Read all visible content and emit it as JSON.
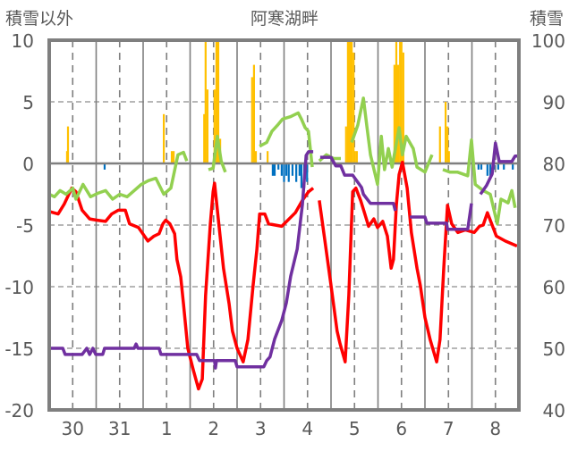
{
  "chart_data": {
    "type": "line",
    "title": "阿寒湖畔",
    "ylabel_left": "積雪以外",
    "ylabel_right": "積雪",
    "x_unit": "days since first label day 00:00",
    "xlim": [
      0,
      10
    ],
    "ylim_left": [
      -20,
      10
    ],
    "ylim_right": [
      40,
      100
    ],
    "yticks_left": [
      "10",
      "5",
      "0",
      "-5",
      "-10",
      "-15",
      "-20"
    ],
    "yticks_right": [
      "100",
      "90",
      "80",
      "70",
      "60",
      "50",
      "40"
    ],
    "xtick_labels": [
      "30",
      "31",
      "1",
      "2",
      "3",
      "4",
      "5",
      "6",
      "7",
      "8"
    ],
    "grid": true,
    "legend": "none",
    "line_series": [
      {
        "id": "red",
        "axis": "left",
        "color": "#ff0000",
        "points": [
          [
            0,
            -3.9
          ],
          [
            0.19,
            -4.1
          ],
          [
            0.32,
            -3.3
          ],
          [
            0.48,
            -2.0
          ],
          [
            0.57,
            -2.3
          ],
          [
            0.7,
            -3.8
          ],
          [
            0.86,
            -4.5
          ],
          [
            1.01,
            -4.6
          ],
          [
            1.2,
            -4.7
          ],
          [
            1.33,
            -4.1
          ],
          [
            1.47,
            -3.8
          ],
          [
            1.62,
            -3.8
          ],
          [
            1.71,
            -4.9
          ],
          [
            1.9,
            -5.2
          ],
          [
            2.1,
            -6.3
          ],
          [
            2.23,
            -5.9
          ],
          [
            2.34,
            -5.7
          ],
          [
            2.42,
            -4.9
          ],
          [
            2.48,
            -4.6
          ],
          [
            2.57,
            -4.9
          ],
          [
            2.67,
            -5.7
          ],
          [
            2.72,
            -7.8
          ],
          [
            2.8,
            -9.2
          ],
          [
            2.86,
            -11.4
          ],
          [
            2.95,
            -15.0
          ],
          [
            3.07,
            -16.8
          ],
          [
            3.18,
            -18.3
          ],
          [
            3.26,
            -17.5
          ],
          [
            3.33,
            -10.7
          ],
          [
            3.43,
            -4.9
          ],
          [
            3.49,
            -2.3
          ],
          [
            3.52,
            -1.6
          ],
          [
            3.6,
            -4.5
          ],
          [
            3.71,
            -8.5
          ],
          [
            3.83,
            -11.4
          ],
          [
            3.9,
            -13.6
          ],
          [
            4.0,
            -15.0
          ],
          [
            4.13,
            -16.1
          ],
          [
            4.23,
            -14.3
          ],
          [
            4.34,
            -9.9
          ],
          [
            4.42,
            -7.0
          ],
          [
            4.48,
            -4.1
          ],
          [
            4.59,
            -4.1
          ],
          [
            4.67,
            -4.9
          ],
          [
            4.95,
            -5.1
          ],
          [
            5.24,
            -4.0
          ],
          [
            5.39,
            -3.0
          ],
          [
            5.52,
            -2.3
          ],
          [
            5.62,
            -2.0
          ],
          null,
          [
            5.75,
            -3.0
          ],
          [
            5.87,
            -6.3
          ],
          [
            6.0,
            -9.9
          ],
          [
            6.13,
            -13.6
          ],
          [
            6.19,
            -14.6
          ],
          [
            6.3,
            -16.1
          ],
          [
            6.38,
            -10.7
          ],
          [
            6.46,
            -2.3
          ],
          [
            6.53,
            -2.0
          ],
          [
            6.63,
            -3.0
          ],
          [
            6.72,
            -4.1
          ],
          [
            6.8,
            -5.1
          ],
          [
            6.91,
            -4.5
          ],
          [
            6.99,
            -5.2
          ],
          [
            7.1,
            -4.7
          ],
          [
            7.2,
            -5.9
          ],
          [
            7.28,
            -8.5
          ],
          [
            7.33,
            -7.8
          ],
          [
            7.39,
            -3.4
          ],
          [
            7.45,
            -0.9
          ],
          [
            7.52,
            0.1
          ],
          [
            7.62,
            -2.0
          ],
          [
            7.71,
            -5.6
          ],
          [
            7.83,
            -8.5
          ],
          [
            7.9,
            -9.9
          ],
          [
            8.0,
            -12.5
          ],
          [
            8.11,
            -14.3
          ],
          [
            8.25,
            -16.1
          ],
          [
            8.32,
            -14.3
          ],
          [
            8.4,
            -8.5
          ],
          [
            8.48,
            -3.4
          ],
          [
            8.57,
            -4.9
          ],
          [
            8.7,
            -5.6
          ],
          [
            8.86,
            -5.4
          ],
          [
            9.05,
            -5.6
          ],
          [
            9.16,
            -5.1
          ],
          [
            9.24,
            -5.0
          ],
          [
            9.33,
            -4.0
          ],
          [
            9.43,
            -5.0
          ],
          [
            9.52,
            -5.9
          ],
          [
            9.71,
            -6.3
          ],
          [
            9.96,
            -6.7
          ]
        ]
      },
      {
        "id": "green",
        "axis": "left",
        "color": "#92d050",
        "points": [
          [
            0,
            -2.5
          ],
          [
            0.11,
            -2.7
          ],
          [
            0.23,
            -2.2
          ],
          [
            0.36,
            -2.5
          ],
          [
            0.5,
            -2.0
          ],
          [
            0.57,
            -2.9
          ],
          [
            0.72,
            -1.7
          ],
          [
            0.88,
            -2.7
          ],
          [
            1.05,
            -2.4
          ],
          [
            1.2,
            -2.2
          ],
          [
            1.35,
            -2.9
          ],
          [
            1.5,
            -2.5
          ],
          [
            1.66,
            -2.7
          ],
          [
            1.81,
            -2.2
          ],
          [
            1.96,
            -1.7
          ],
          [
            2.11,
            -1.4
          ],
          [
            2.27,
            -1.2
          ],
          [
            2.44,
            -2.5
          ],
          [
            2.59,
            -2.0
          ],
          [
            2.74,
            0.7
          ],
          [
            2.86,
            0.9
          ],
          [
            2.93,
            0.2
          ],
          null,
          [
            3.39,
            -0.5
          ],
          [
            3.49,
            -0.4
          ],
          [
            3.58,
            2.2
          ],
          [
            3.66,
            0.2
          ],
          [
            3.75,
            -0.7
          ],
          null,
          [
            4.48,
            1.4
          ],
          [
            4.63,
            1.7
          ],
          [
            4.74,
            2.6
          ],
          [
            4.86,
            3.1
          ],
          [
            4.97,
            3.6
          ],
          [
            5.14,
            3.8
          ],
          [
            5.3,
            4.1
          ],
          [
            5.37,
            3.6
          ],
          [
            5.45,
            2.9
          ],
          [
            5.52,
            2.6
          ],
          [
            5.6,
            -0.3
          ],
          null,
          [
            5.75,
            0.2
          ],
          [
            5.9,
            0.7
          ],
          [
            6.06,
            0.4
          ],
          [
            6.21,
            0.4
          ],
          null,
          [
            6.44,
            1.7
          ],
          [
            6.57,
            3.1
          ],
          [
            6.69,
            5.3
          ],
          [
            6.76,
            3.1
          ],
          [
            6.84,
            0.7
          ],
          [
            6.99,
            -1.7
          ],
          [
            7.07,
            2.2
          ],
          [
            7.14,
            -0.5
          ],
          [
            7.22,
            1.2
          ],
          [
            7.3,
            -0.3
          ],
          [
            7.45,
            2.9
          ],
          [
            7.52,
            0.7
          ],
          [
            7.6,
            2.2
          ],
          [
            7.75,
            1.2
          ],
          [
            7.83,
            -0.3
          ],
          [
            8.0,
            -0.7
          ],
          [
            8.15,
            0.7
          ],
          null,
          [
            8.38,
            -0.5
          ],
          [
            8.53,
            -0.7
          ],
          [
            8.69,
            -0.7
          ],
          [
            8.91,
            -1.0
          ],
          [
            8.99,
            1.9
          ],
          [
            9.07,
            -1.7
          ],
          [
            9.24,
            -2.2
          ],
          [
            9.39,
            -2.5
          ],
          [
            9.54,
            -4.9
          ],
          [
            9.62,
            -2.9
          ],
          [
            9.77,
            -3.2
          ],
          [
            9.85,
            -2.2
          ],
          [
            9.92,
            -3.6
          ]
        ]
      },
      {
        "id": "purple",
        "axis": "right",
        "color": "#7030a0",
        "points": [
          [
            0,
            50
          ],
          [
            0.29,
            50
          ],
          [
            0.34,
            49
          ],
          [
            0.7,
            49
          ],
          [
            0.8,
            50
          ],
          [
            0.86,
            49
          ],
          [
            0.93,
            50
          ],
          [
            0.99,
            49
          ],
          [
            1.14,
            49
          ],
          [
            1.18,
            50
          ],
          [
            1.81,
            50
          ],
          [
            1.85,
            50.7
          ],
          [
            1.89,
            50
          ],
          [
            2.34,
            50
          ],
          [
            2.38,
            49
          ],
          [
            3.14,
            49
          ],
          [
            3.2,
            48
          ],
          [
            3.52,
            48
          ],
          [
            3.54,
            46.8
          ],
          [
            3.56,
            48
          ],
          [
            3.96,
            48
          ],
          [
            4.0,
            47
          ],
          [
            4.57,
            47
          ],
          [
            4.63,
            48
          ],
          [
            4.7,
            48.6
          ],
          [
            4.8,
            51.5
          ],
          [
            4.95,
            54.5
          ],
          [
            5.05,
            57.4
          ],
          [
            5.14,
            61.7
          ],
          [
            5.28,
            66.1
          ],
          [
            5.39,
            73.3
          ],
          [
            5.47,
            81.3
          ],
          [
            5.52,
            81.9
          ],
          [
            5.62,
            81.9
          ],
          null,
          [
            5.77,
            81.0
          ],
          [
            6.0,
            81.0
          ],
          [
            6.1,
            79.6
          ],
          [
            6.21,
            79.6
          ],
          [
            6.29,
            78.1
          ],
          [
            6.46,
            78.1
          ],
          [
            6.65,
            76.1
          ],
          [
            6.69,
            75.0
          ],
          [
            6.84,
            73.5
          ],
          [
            7.33,
            73.5
          ],
          [
            7.37,
            72.3
          ],
          null,
          [
            7.68,
            71.3
          ],
          [
            8.0,
            71.3
          ],
          [
            8.04,
            70.3
          ],
          [
            8.46,
            70.3
          ],
          [
            8.48,
            69.3
          ],
          [
            8.91,
            69.3
          ],
          [
            8.99,
            73.5
          ],
          null,
          [
            9.18,
            75.0
          ],
          [
            9.31,
            76.4
          ],
          [
            9.43,
            78.3
          ],
          [
            9.5,
            83.3
          ],
          [
            9.58,
            80.3
          ],
          [
            9.85,
            80.3
          ],
          [
            9.92,
            81.2
          ],
          [
            9.98,
            81.2
          ]
        ]
      }
    ],
    "bar_series": [
      {
        "id": "orange",
        "axis": "left",
        "color": "#ffc000",
        "bars": [
          [
            0.38,
            1
          ],
          [
            0.4,
            3
          ],
          [
            2.44,
            4
          ],
          [
            2.61,
            1
          ],
          [
            2.65,
            1
          ],
          [
            3.3,
            4
          ],
          [
            3.33,
            10
          ],
          [
            3.37,
            6
          ],
          [
            3.52,
            6
          ],
          [
            3.56,
            10
          ],
          [
            3.6,
            10
          ],
          [
            3.64,
            2
          ],
          [
            4.32,
            7
          ],
          [
            4.36,
            8
          ],
          [
            4.4,
            1
          ],
          [
            4.65,
            1
          ],
          [
            6.32,
            3
          ],
          [
            6.36,
            10
          ],
          [
            6.4,
            10
          ],
          [
            6.44,
            10
          ],
          [
            6.48,
            9
          ],
          [
            6.51,
            1
          ],
          [
            6.55,
            1
          ],
          [
            7.35,
            8
          ],
          [
            7.39,
            10
          ],
          [
            7.43,
            8
          ],
          [
            7.47,
            10
          ],
          [
            7.5,
            10
          ],
          [
            7.54,
            9
          ],
          [
            8.32,
            3
          ],
          [
            8.44,
            5
          ],
          [
            8.48,
            3
          ],
          [
            8.51,
            1
          ]
        ]
      },
      {
        "id": "blue",
        "axis": "left",
        "color": "#0070c0",
        "bars": [
          [
            1.18,
            -0.5
          ],
          [
            4.76,
            -1
          ],
          [
            4.8,
            -1
          ],
          [
            4.88,
            -0.5
          ],
          [
            4.95,
            -1
          ],
          [
            5.0,
            -1.5
          ],
          [
            5.05,
            -1
          ],
          [
            5.1,
            -1.5
          ],
          [
            5.18,
            -1
          ],
          [
            5.26,
            -1.5
          ],
          [
            5.33,
            -1
          ],
          [
            5.37,
            -2
          ],
          [
            5.43,
            -2
          ],
          [
            5.49,
            -1.5
          ],
          [
            9.14,
            -0.5
          ],
          [
            9.2,
            -0.5
          ],
          [
            9.33,
            -1
          ],
          [
            9.39,
            -1
          ],
          [
            9.47,
            -0.5
          ],
          [
            9.56,
            -0.5
          ],
          [
            9.68,
            -0.5
          ],
          [
            9.87,
            -0.5
          ]
        ]
      }
    ]
  }
}
